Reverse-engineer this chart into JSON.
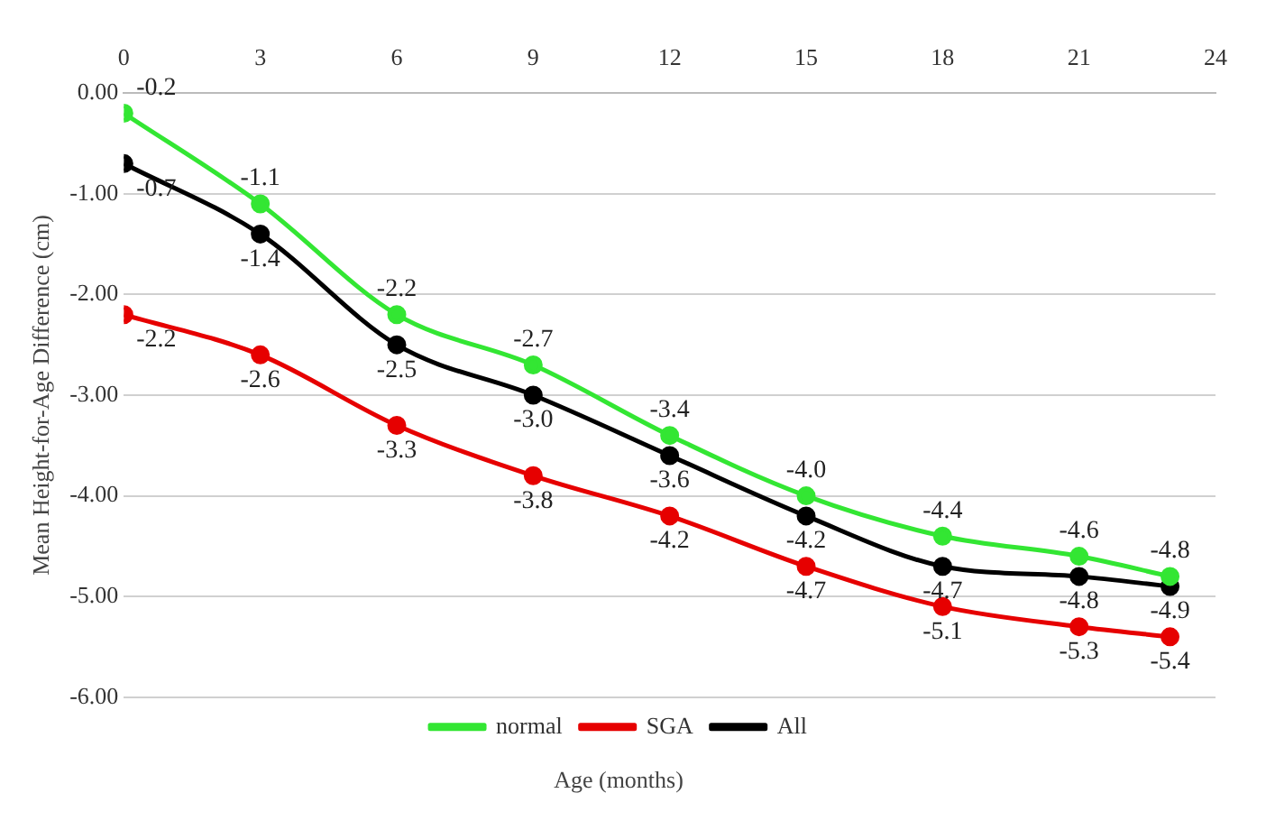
{
  "chart_data": {
    "type": "line",
    "xlabel": "Age (months)",
    "ylabel": "Mean Height-for-Age Difference (cm)",
    "x": [
      0,
      3,
      6,
      9,
      12,
      15,
      18,
      21,
      23
    ],
    "series": [
      {
        "name": "normal",
        "color": "#33e633",
        "values": [
          -0.2,
          -1.1,
          -2.2,
          -2.7,
          -3.4,
          -4.0,
          -4.4,
          -4.6,
          -4.8
        ],
        "value_labels": [
          "-0.2",
          "-1.1",
          "-2.2",
          "-2.7",
          "-3.4",
          "-4.0",
          "-4.4",
          "-4.6",
          "-4.8"
        ]
      },
      {
        "name": "SGA",
        "color": "#e60000",
        "values": [
          -2.2,
          -2.6,
          -3.3,
          -3.8,
          -4.2,
          -4.7,
          -5.1,
          -5.3,
          -5.4
        ],
        "value_labels": [
          "-2.2",
          "-2.6",
          "-3.3",
          "-3.8",
          "-4.2",
          "-4.7",
          "-5.1",
          "-5.3",
          "-5.4"
        ]
      },
      {
        "name": "All",
        "color": "#000000",
        "values": [
          -0.7,
          -1.4,
          -2.5,
          -3.0,
          -3.6,
          -4.2,
          -4.7,
          -4.8,
          -4.9
        ],
        "value_labels": [
          "-0.7",
          "-1.4",
          "-2.5",
          "-3.0",
          "-3.6",
          "-4.2",
          "-4.7",
          "-4.8",
          "-4.9"
        ]
      }
    ],
    "xlim": [
      0,
      24
    ],
    "xticks": [
      0,
      3,
      6,
      9,
      12,
      15,
      18,
      21,
      24
    ],
    "ylim": [
      -6,
      0
    ],
    "yticks": [
      {
        "value": 0,
        "label": "0.00"
      },
      {
        "value": -1,
        "label": "-1.00"
      },
      {
        "value": -2,
        "label": "-2.00"
      },
      {
        "value": -3,
        "label": "-3.00"
      },
      {
        "value": -4,
        "label": "-4.00"
      },
      {
        "value": -5,
        "label": "-5.00"
      },
      {
        "value": -6,
        "label": "-6.00"
      }
    ],
    "grid": "y",
    "legend": "bottom",
    "marker": "circle",
    "line_style": "solid"
  }
}
